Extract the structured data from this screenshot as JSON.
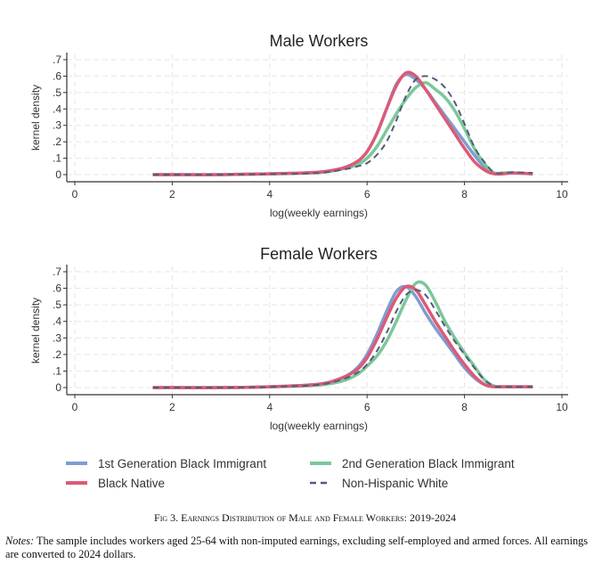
{
  "chart_data": [
    {
      "type": "line",
      "title": "Male Workers",
      "xlabel": "log(weekly earnings)",
      "ylabel": "kernel density",
      "xlim": [
        0,
        10
      ],
      "ylim": [
        0,
        0.7
      ],
      "xticks": [
        0,
        2,
        4,
        6,
        8,
        10
      ],
      "yticks": [
        0,
        0.1,
        0.2,
        0.3,
        0.4,
        0.5,
        0.6,
        0.7
      ],
      "ytick_labels": [
        "0",
        ".1",
        ".2",
        ".3",
        ".4",
        ".5",
        ".6",
        ".7"
      ],
      "grid": true,
      "x": [
        1.6,
        2,
        3,
        4,
        5,
        5.5,
        5.8,
        6,
        6.2,
        6.4,
        6.6,
        6.8,
        7,
        7.2,
        7.4,
        7.6,
        7.8,
        8,
        8.2,
        8.4,
        8.6,
        8.8,
        9,
        9.4
      ],
      "series": [
        {
          "name": "1st Generation Black Immigrant",
          "values": [
            0,
            0,
            0,
            0.005,
            0.015,
            0.04,
            0.08,
            0.14,
            0.25,
            0.4,
            0.55,
            0.61,
            0.58,
            0.52,
            0.44,
            0.36,
            0.28,
            0.2,
            0.12,
            0.05,
            0.01,
            0.01,
            0.01,
            0.005
          ]
        },
        {
          "name": "2nd Generation Black Immigrant",
          "values": [
            0,
            0,
            0,
            0.005,
            0.012,
            0.035,
            0.06,
            0.1,
            0.17,
            0.27,
            0.37,
            0.46,
            0.53,
            0.56,
            0.52,
            0.47,
            0.39,
            0.28,
            0.16,
            0.07,
            0.01,
            0.01,
            0.01,
            0.005
          ]
        },
        {
          "name": "Black Native",
          "values": [
            0,
            0,
            0,
            0.005,
            0.015,
            0.04,
            0.08,
            0.14,
            0.25,
            0.4,
            0.54,
            0.62,
            0.6,
            0.52,
            0.43,
            0.34,
            0.25,
            0.16,
            0.08,
            0.03,
            0.005,
            0.005,
            0.01,
            0.005
          ]
        },
        {
          "name": "Non-Hispanic White",
          "values": [
            0,
            0,
            0,
            0.003,
            0.01,
            0.03,
            0.05,
            0.07,
            0.12,
            0.2,
            0.33,
            0.48,
            0.58,
            0.6,
            0.58,
            0.53,
            0.44,
            0.31,
            0.17,
            0.08,
            0.015,
            0.01,
            0.015,
            0.01
          ]
        }
      ]
    },
    {
      "type": "line",
      "title": "Female Workers",
      "xlabel": "log(weekly earnings)",
      "ylabel": "kernel density",
      "xlim": [
        0,
        10
      ],
      "ylim": [
        0,
        0.7
      ],
      "xticks": [
        0,
        2,
        4,
        6,
        8,
        10
      ],
      "yticks": [
        0,
        0.1,
        0.2,
        0.3,
        0.4,
        0.5,
        0.6,
        0.7
      ],
      "ytick_labels": [
        "0",
        ".1",
        ".2",
        ".3",
        ".4",
        ".5",
        ".6",
        ".7"
      ],
      "grid": true,
      "x": [
        1.6,
        2,
        3,
        4,
        5,
        5.5,
        5.8,
        6,
        6.2,
        6.4,
        6.6,
        6.8,
        7,
        7.2,
        7.4,
        7.6,
        7.8,
        8,
        8.2,
        8.4,
        8.6,
        8.8,
        9,
        9.4
      ],
      "series": [
        {
          "name": "1st Generation Black Immigrant",
          "values": [
            0,
            0,
            0,
            0.005,
            0.02,
            0.06,
            0.12,
            0.2,
            0.32,
            0.46,
            0.58,
            0.61,
            0.55,
            0.45,
            0.36,
            0.28,
            0.2,
            0.12,
            0.06,
            0.02,
            0.005,
            0.005,
            0.005,
            0.005
          ]
        },
        {
          "name": "2nd Generation Black Immigrant",
          "values": [
            0,
            0,
            0,
            0.004,
            0.015,
            0.04,
            0.08,
            0.13,
            0.19,
            0.28,
            0.4,
            0.53,
            0.63,
            0.62,
            0.52,
            0.4,
            0.3,
            0.21,
            0.13,
            0.05,
            0.01,
            0.005,
            0.005,
            0.005
          ]
        },
        {
          "name": "Black Native",
          "values": [
            0,
            0,
            0,
            0.005,
            0.02,
            0.06,
            0.11,
            0.18,
            0.29,
            0.42,
            0.54,
            0.61,
            0.59,
            0.5,
            0.4,
            0.31,
            0.22,
            0.14,
            0.07,
            0.02,
            0.005,
            0.005,
            0.005,
            0.005
          ]
        },
        {
          "name": "Non-Hispanic White",
          "values": [
            0,
            0,
            0,
            0.004,
            0.017,
            0.05,
            0.09,
            0.14,
            0.22,
            0.33,
            0.46,
            0.56,
            0.59,
            0.56,
            0.47,
            0.37,
            0.28,
            0.2,
            0.12,
            0.05,
            0.01,
            0.005,
            0.005,
            0.005
          ]
        }
      ]
    }
  ],
  "legend": {
    "placement": "bottom",
    "items": [
      {
        "label": "1st Generation Black Immigrant",
        "color": "#7f9ccf",
        "dashed": false
      },
      {
        "label": "2nd Generation Black Immigrant",
        "color": "#7cc79a",
        "dashed": false
      },
      {
        "label": "Black Native",
        "color": "#dc5a77",
        "dashed": false
      },
      {
        "label": "Non-Hispanic White",
        "color": "#525c7a",
        "dashed": true
      }
    ]
  },
  "caption": "Fig 3. Earnings Distribution of Male and Female Workers: 2019-2024",
  "notes": {
    "label": "Notes:",
    "text": " The sample includes workers aged 25-64 with non-imputed earnings, excluding self-employed and armed forces. All earnings are converted to 2024 dollars."
  }
}
